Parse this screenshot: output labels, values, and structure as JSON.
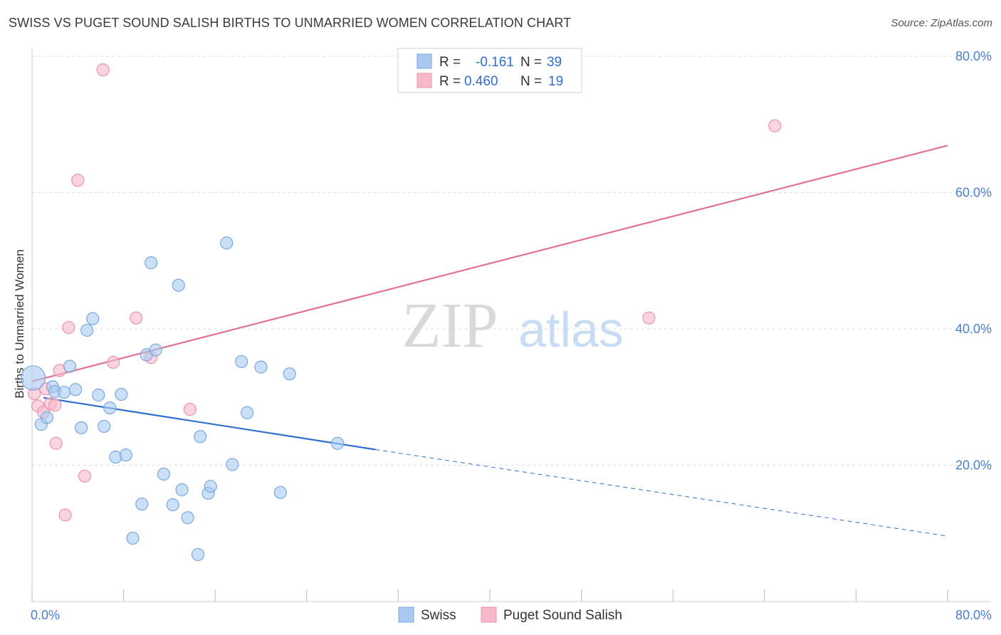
{
  "header": {
    "title": "SWISS VS PUGET SOUND SALISH BIRTHS TO UNMARRIED WOMEN CORRELATION CHART",
    "source": "Source: ZipAtlas.com"
  },
  "watermark": {
    "part1": "ZIP",
    "part2": "atlas"
  },
  "legend": {
    "r_label": "R =",
    "n_label": "N =",
    "entries": [
      {
        "r": "-0.161",
        "n": "39",
        "color": "#a9c9f0"
      },
      {
        "r": "0.460",
        "n": "19",
        "color": "#f7b9ca"
      }
    ]
  },
  "bottom_legend": [
    {
      "name": "Swiss",
      "color": "#a9c9f0"
    },
    {
      "name": "Puget Sound Salish",
      "color": "#f7b9ca"
    }
  ],
  "colors": {
    "swiss_fill": "#a9c9f0",
    "swiss_stroke": "#7aa8e0",
    "swiss_line": "#2f6fd0",
    "salish_fill": "#f7b9ca",
    "salish_stroke": "#ee92ac",
    "salish_line": "#e07098",
    "tick_text": "#4a7fd0",
    "grid": "#dddddd"
  },
  "chart_data": {
    "type": "scatter",
    "ylabel": "Births to Unmarried Women",
    "xlabel": "",
    "xlim": [
      0,
      80
    ],
    "ylim": [
      0,
      80
    ],
    "x_tick_labels": [
      {
        "value": 0,
        "label": "0.0%"
      },
      {
        "value": 80,
        "label": "80.0%"
      }
    ],
    "y_tick_labels": [
      {
        "value": 20,
        "label": "20.0%"
      },
      {
        "value": 40,
        "label": "40.0%"
      },
      {
        "value": 60,
        "label": "60.0%"
      },
      {
        "value": 80,
        "label": "80.0%"
      }
    ],
    "grid": true,
    "series": [
      {
        "name": "Swiss",
        "r": -0.161,
        "n": 39,
        "points": [
          [
            0.1,
            32.8,
            "large"
          ],
          [
            0.8,
            26.0
          ],
          [
            1.3,
            27.0
          ],
          [
            1.8,
            31.5
          ],
          [
            2.0,
            30.8
          ],
          [
            2.8,
            30.7
          ],
          [
            3.3,
            34.5
          ],
          [
            3.8,
            31.1
          ],
          [
            4.3,
            25.5
          ],
          [
            4.8,
            39.8
          ],
          [
            5.3,
            41.5
          ],
          [
            5.8,
            30.3
          ],
          [
            6.3,
            25.7
          ],
          [
            6.8,
            28.4
          ],
          [
            7.3,
            21.2
          ],
          [
            7.8,
            30.4
          ],
          [
            8.2,
            21.5
          ],
          [
            8.8,
            9.3
          ],
          [
            9.6,
            14.3
          ],
          [
            10.0,
            36.2
          ],
          [
            10.4,
            49.7
          ],
          [
            10.8,
            36.9
          ],
          [
            11.5,
            18.7
          ],
          [
            12.3,
            14.2
          ],
          [
            12.8,
            46.4
          ],
          [
            13.1,
            16.4
          ],
          [
            13.6,
            12.3
          ],
          [
            14.5,
            6.9
          ],
          [
            14.7,
            24.2
          ],
          [
            15.4,
            15.9
          ],
          [
            15.6,
            16.9
          ],
          [
            17.0,
            52.6
          ],
          [
            17.5,
            20.1
          ],
          [
            18.3,
            35.2
          ],
          [
            18.8,
            27.7
          ],
          [
            20.0,
            34.4
          ],
          [
            21.7,
            16.0
          ],
          [
            22.5,
            33.4
          ],
          [
            26.7,
            23.2
          ]
        ],
        "trend": {
          "x0": 1.0,
          "y0": 29.9,
          "x1": 30.0,
          "y1": 22.3,
          "dash_x1": 80.0,
          "dash_y1": 9.6
        }
      },
      {
        "name": "Puget Sound Salish",
        "r": 0.46,
        "n": 19,
        "points": [
          [
            0.2,
            30.5
          ],
          [
            0.5,
            28.7
          ],
          [
            1.0,
            27.8
          ],
          [
            1.2,
            31.2
          ],
          [
            1.6,
            29.0
          ],
          [
            2.0,
            28.8
          ],
          [
            2.1,
            23.2
          ],
          [
            2.4,
            33.9
          ],
          [
            2.9,
            12.7
          ],
          [
            3.2,
            40.2
          ],
          [
            4.0,
            61.8
          ],
          [
            4.6,
            18.4
          ],
          [
            6.2,
            78.0
          ],
          [
            7.1,
            35.1
          ],
          [
            9.1,
            41.6
          ],
          [
            10.4,
            35.8
          ],
          [
            13.8,
            28.2
          ],
          [
            64.9,
            69.8
          ],
          [
            53.9,
            41.6
          ]
        ],
        "trend": {
          "x0": 0.0,
          "y0": 32.3,
          "x1": 80.0,
          "y1": 66.9
        }
      }
    ]
  }
}
